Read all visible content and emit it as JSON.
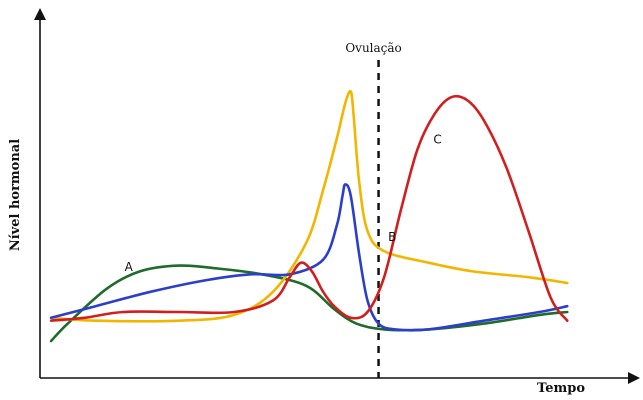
{
  "chart_data": {
    "type": "line",
    "title": "",
    "xlabel": "Tempo",
    "ylabel": "Nível hormonal",
    "annotations": {
      "ovulation_label": "Ovulação"
    },
    "grid": false,
    "legend": "none",
    "series": [
      {
        "name": "A",
        "color": "#1f6b2a",
        "points": [
          [
            0.02,
            0.1
          ],
          [
            0.05,
            0.16
          ],
          [
            0.12,
            0.28
          ],
          [
            0.18,
            0.34
          ],
          [
            0.25,
            0.36
          ],
          [
            0.32,
            0.35
          ],
          [
            0.4,
            0.33
          ],
          [
            0.48,
            0.29
          ],
          [
            0.53,
            0.21
          ],
          [
            0.57,
            0.16
          ],
          [
            0.62,
            0.14
          ],
          [
            0.7,
            0.14
          ],
          [
            0.8,
            0.16
          ],
          [
            0.9,
            0.19
          ],
          [
            0.95,
            0.2
          ]
        ]
      },
      {
        "name": "B",
        "color": "#f2b600",
        "points": [
          [
            0.02,
            0.18
          ],
          [
            0.1,
            0.17
          ],
          [
            0.25,
            0.17
          ],
          [
            0.35,
            0.19
          ],
          [
            0.42,
            0.27
          ],
          [
            0.48,
            0.44
          ],
          [
            0.51,
            0.62
          ],
          [
            0.535,
            0.8
          ],
          [
            0.55,
            0.92
          ],
          [
            0.56,
            0.96
          ],
          [
            0.565,
            0.88
          ],
          [
            0.575,
            0.65
          ],
          [
            0.59,
            0.48
          ],
          [
            0.62,
            0.41
          ],
          [
            0.7,
            0.37
          ],
          [
            0.78,
            0.34
          ],
          [
            0.88,
            0.32
          ],
          [
            0.95,
            0.3
          ]
        ]
      },
      {
        "name": "",
        "color": "#2b3fcc",
        "points": [
          [
            0.02,
            0.18
          ],
          [
            0.1,
            0.22
          ],
          [
            0.2,
            0.27
          ],
          [
            0.3,
            0.31
          ],
          [
            0.38,
            0.33
          ],
          [
            0.45,
            0.33
          ],
          [
            0.51,
            0.38
          ],
          [
            0.535,
            0.5
          ],
          [
            0.545,
            0.6
          ],
          [
            0.55,
            0.64
          ],
          [
            0.56,
            0.6
          ],
          [
            0.575,
            0.4
          ],
          [
            0.59,
            0.24
          ],
          [
            0.61,
            0.16
          ],
          [
            0.64,
            0.14
          ],
          [
            0.7,
            0.14
          ],
          [
            0.8,
            0.17
          ],
          [
            0.9,
            0.2
          ],
          [
            0.95,
            0.22
          ]
        ]
      },
      {
        "name": "C",
        "color": "#d11f1f",
        "points": [
          [
            0.02,
            0.17
          ],
          [
            0.08,
            0.18
          ],
          [
            0.15,
            0.2
          ],
          [
            0.25,
            0.2
          ],
          [
            0.35,
            0.2
          ],
          [
            0.42,
            0.24
          ],
          [
            0.45,
            0.32
          ],
          [
            0.47,
            0.37
          ],
          [
            0.49,
            0.34
          ],
          [
            0.51,
            0.27
          ],
          [
            0.53,
            0.22
          ],
          [
            0.56,
            0.18
          ],
          [
            0.59,
            0.2
          ],
          [
            0.62,
            0.32
          ],
          [
            0.65,
            0.55
          ],
          [
            0.68,
            0.76
          ],
          [
            0.71,
            0.88
          ],
          [
            0.74,
            0.94
          ],
          [
            0.77,
            0.93
          ],
          [
            0.8,
            0.86
          ],
          [
            0.84,
            0.7
          ],
          [
            0.88,
            0.48
          ],
          [
            0.92,
            0.25
          ],
          [
            0.95,
            0.17
          ]
        ]
      }
    ],
    "ovulation_x": 0.61,
    "xlim": [
      0,
      1
    ],
    "ylim": [
      0,
      1
    ]
  }
}
